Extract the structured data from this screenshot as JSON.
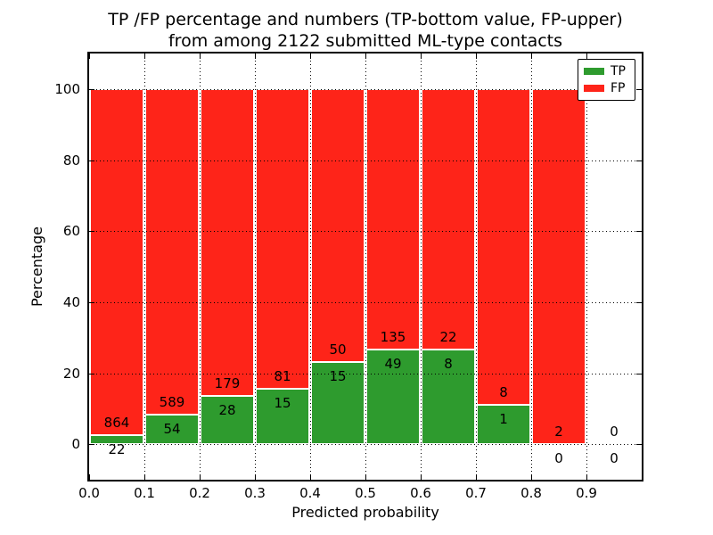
{
  "figure": {
    "title_line1": "TP /FP percentage and numbers (TP-bottom value, FP-upper)",
    "title_line2": "from among 2122 submitted ML-type contacts",
    "background_color": "#ffffff"
  },
  "chart_data": {
    "type": "bar",
    "stacked": true,
    "title": "TP /FP percentage and numbers (TP-bottom value, FP-upper) from among 2122 submitted ML-type contacts",
    "xlabel": "Predicted probability",
    "ylabel": "Percentage",
    "xlim": [
      0.0,
      1.0
    ],
    "ylim": [
      -10,
      110
    ],
    "grid": true,
    "grid_style": "black dotted, drawn above bars",
    "x_tick_labels": [
      "0.0",
      "0.1",
      "0.2",
      "0.3",
      "0.4",
      "0.5",
      "0.6",
      "0.7",
      "0.8",
      "0.9"
    ],
    "y_tick_values": [
      0,
      20,
      40,
      60,
      80,
      100
    ],
    "y_tick_labels": [
      "0",
      "20",
      "40",
      "60",
      "80",
      "100"
    ],
    "bin_width": 0.1,
    "bin_starts": [
      0.0,
      0.1,
      0.2,
      0.3,
      0.4,
      0.5,
      0.6,
      0.7,
      0.8,
      0.9
    ],
    "series": [
      {
        "name": "TP",
        "color": "#2e9b2e",
        "counts": [
          22,
          54,
          28,
          15,
          15,
          49,
          8,
          1,
          0,
          0
        ]
      },
      {
        "name": "FP",
        "color": "#fe2419",
        "counts": [
          864,
          589,
          179,
          81,
          50,
          135,
          22,
          8,
          2,
          0
        ]
      }
    ],
    "bar_heights_note": "green TP segment height = tp/(tp+fp)*100 percent, red FP fills to 100; bin 0.9-1.0 has no bar",
    "tp_percentages": [
      2.5,
      8.4,
      13.5,
      15.6,
      23.1,
      26.6,
      26.7,
      11.1,
      0.0,
      null
    ],
    "total_contacts": 2122,
    "legend": {
      "position": "upper right",
      "entries": [
        "TP",
        "FP"
      ]
    },
    "annotations": "FP count printed above each green top, TP count printed below it"
  }
}
